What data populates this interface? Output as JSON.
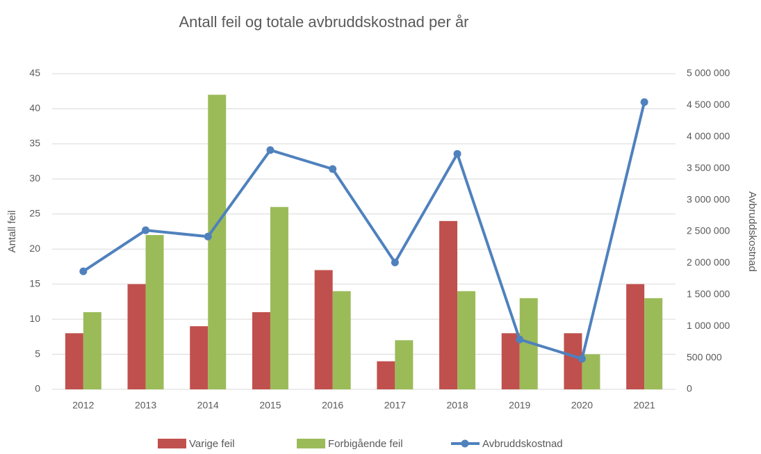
{
  "chart_data": {
    "type": "bar",
    "title": "Antall feil og totale avbruddskostnad per år",
    "y_label": "Antall feil",
    "y2_label": "Avbruddskostnad",
    "categories": [
      "2012",
      "2013",
      "2014",
      "2015",
      "2016",
      "2017",
      "2018",
      "2019",
      "2020",
      "2021"
    ],
    "series": [
      {
        "name": "Varige feil",
        "color": "#c0504d",
        "type": "bar",
        "values": [
          8,
          15,
          9,
          11,
          17,
          4,
          24,
          8,
          8,
          15
        ]
      },
      {
        "name": "Forbigående  feil",
        "color": "#9bbb59",
        "type": "bar",
        "values": [
          11,
          22,
          42,
          26,
          14,
          7,
          14,
          13,
          5,
          13
        ]
      },
      {
        "name": "Avbruddskostnad",
        "color": "#4f81bd",
        "type": "line",
        "axis": "y2",
        "values": [
          1870000,
          2520000,
          2420000,
          3790000,
          3490000,
          2010000,
          3730000,
          790000,
          485000,
          4550000
        ]
      }
    ],
    "ylim": [
      0,
      45
    ],
    "yticks": [
      0,
      5,
      10,
      15,
      20,
      25,
      30,
      35,
      40,
      45
    ],
    "y2lim": [
      0,
      5000000
    ],
    "y2ticks": [
      0,
      {
        "value": 500000,
        "label": "500 000"
      },
      {
        "value": 1000000,
        "label": "1 000 000"
      },
      {
        "value": 1500000,
        "label": "1 500 000"
      },
      {
        "value": 2000000,
        "label": "2 000 000"
      },
      {
        "value": 2500000,
        "label": "2 500 000"
      },
      {
        "value": 3000000,
        "label": "3 000 000"
      },
      {
        "value": 3500000,
        "label": "3 500 000"
      },
      {
        "value": 4000000,
        "label": "4 000 000"
      },
      {
        "value": 4500000,
        "label": "4 500 000"
      },
      {
        "value": 5000000,
        "label": "5 000 000"
      }
    ],
    "grid": true,
    "legend": "bottom"
  }
}
